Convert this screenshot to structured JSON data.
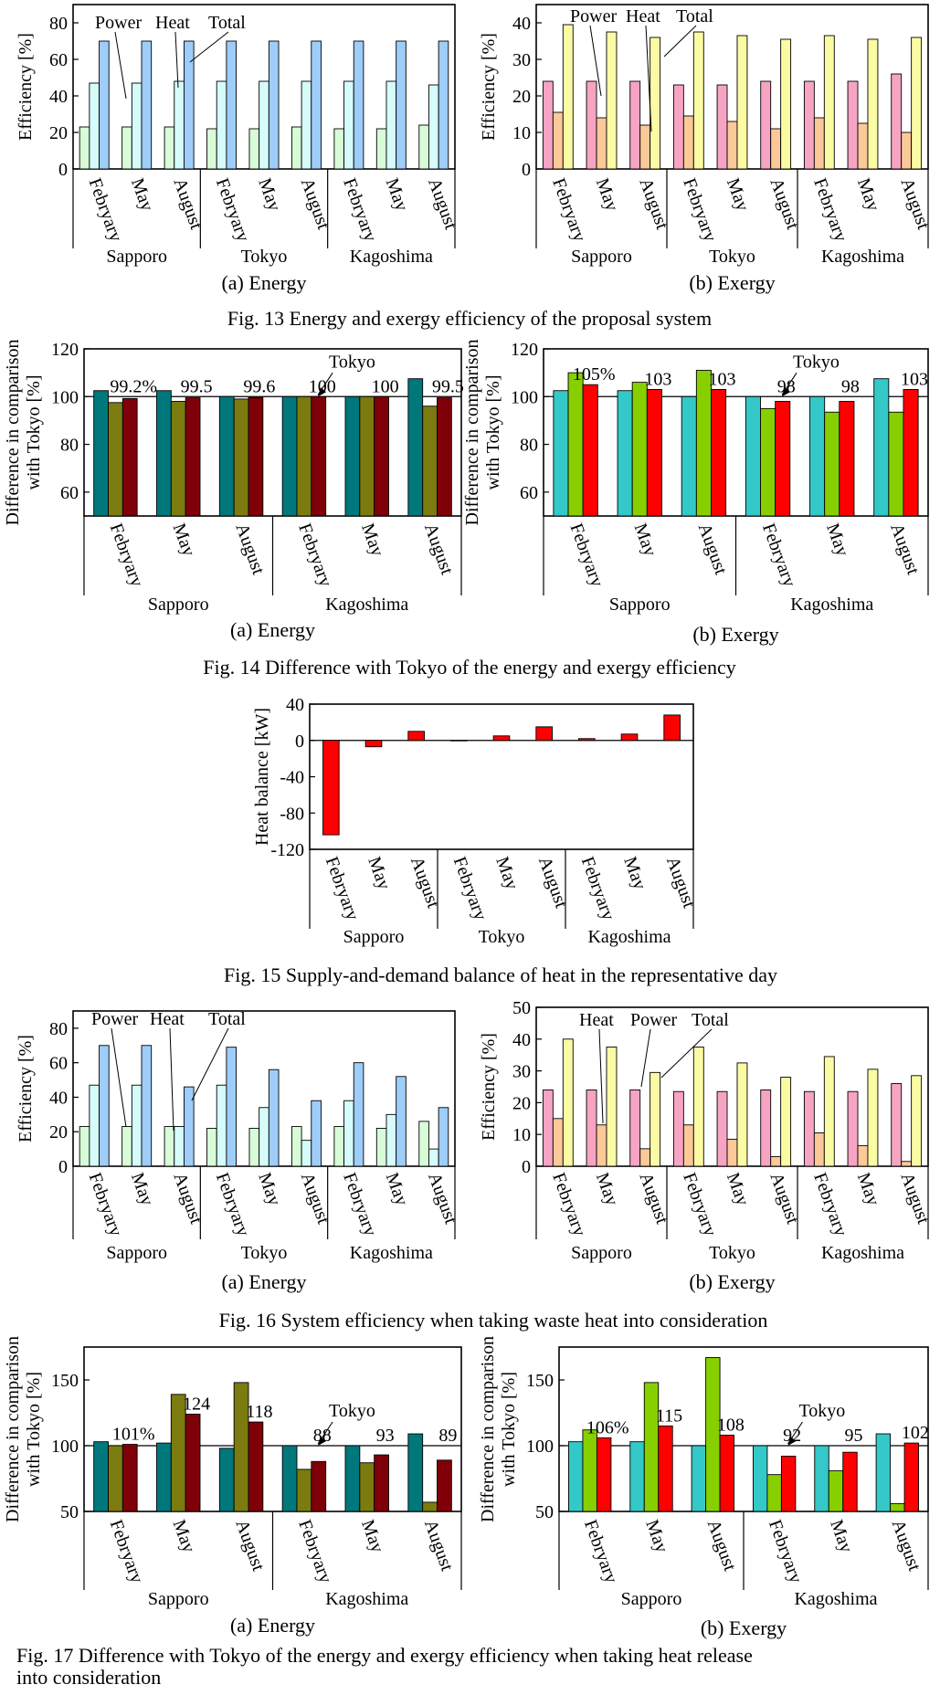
{
  "figures": [
    {
      "caption": "Fig. 13  Energy and exergy efficiency of the proposal system"
    },
    {
      "caption": "Fig. 14  Difference with Tokyo of the energy and exergy efficiency"
    },
    {
      "caption": "Fig. 15  Supply-and-demand balance of heat in the representative day"
    },
    {
      "caption": "Fig. 16  System efficiency when taking waste heat into consideration"
    },
    {
      "caption": "Fig. 17  Difference with Tokyo of the energy and exergy efficiency when taking heat release into consideration"
    }
  ],
  "colors": {
    "energy_power": "#d8fbd8",
    "energy_heat": "#d6fbfb",
    "energy_total": "#9ecdf9",
    "exergy_power": "#f7a4c4",
    "exergy_heat": "#fbc898",
    "exergy_total": "#fbfba4",
    "diff_energy_1": "#00777b",
    "diff_energy_2": "#7b7b10",
    "diff_energy_3": "#7f0008",
    "diff_exergy_1": "#34c8c8",
    "diff_exergy_2": "#88cf00",
    "diff_exergy_3": "#ff0000",
    "heat_balance": "#ff0000"
  },
  "chart_data": [
    {
      "id": "c13a",
      "type": "bar",
      "subtitle": "(a) Energy",
      "ylabel": "Efficiency [%]",
      "ylim": [
        0,
        90
      ],
      "yticks": [
        0,
        20,
        40,
        60,
        80
      ],
      "categories": [
        "Febryary",
        "May",
        "August",
        "Febryary",
        "May",
        "August",
        "Febryary",
        "May",
        "August"
      ],
      "groups": [
        "Sapporo",
        "Tokyo",
        "Kagoshima"
      ],
      "series": [
        {
          "name": "Power",
          "color_key": "energy_power",
          "values": [
            23,
            23,
            23,
            22,
            22,
            23,
            22,
            22,
            24
          ]
        },
        {
          "name": "Heat",
          "color_key": "energy_heat",
          "values": [
            47,
            47,
            48,
            48,
            48,
            48,
            48,
            48,
            46
          ]
        },
        {
          "name": "Total",
          "color_key": "energy_total",
          "values": [
            70,
            70,
            70,
            70,
            70,
            70,
            70,
            70,
            70
          ]
        }
      ]
    },
    {
      "id": "c13b",
      "type": "bar",
      "subtitle": "(b) Exergy",
      "ylabel": "Efficiency [%]",
      "ylim": [
        0,
        45
      ],
      "yticks": [
        0,
        10,
        20,
        30,
        40
      ],
      "categories": [
        "Febryary",
        "May",
        "August",
        "Febryary",
        "May",
        "August",
        "Febryary",
        "May",
        "August"
      ],
      "groups": [
        "Sapporo",
        "Tokyo",
        "Kagoshima"
      ],
      "series": [
        {
          "name": "Power",
          "color_key": "exergy_power",
          "values": [
            24,
            24,
            24,
            23,
            23,
            24,
            24,
            24,
            26
          ]
        },
        {
          "name": "Heat",
          "color_key": "exergy_heat",
          "values": [
            15.5,
            14,
            12,
            14.5,
            13,
            11,
            14,
            12.5,
            10
          ]
        },
        {
          "name": "Total",
          "color_key": "exergy_total",
          "values": [
            39.5,
            37.5,
            36,
            37.5,
            36.5,
            35.5,
            36.5,
            35.5,
            36
          ]
        }
      ]
    },
    {
      "id": "c14a",
      "type": "bar",
      "subtitle": "(a) Energy",
      "ylabel_lines": [
        "Difference in comparison",
        "with Tokyo [%]"
      ],
      "ylim": [
        50,
        120
      ],
      "yticks": [
        60,
        80,
        100,
        120
      ],
      "refline": 100,
      "refline_label": "Tokyo",
      "categories": [
        "Febryary",
        "May",
        "August",
        "Febryary",
        "May",
        "August"
      ],
      "groups": [
        "Sapporo",
        "Kagoshima"
      ],
      "series": [
        {
          "color_key": "diff_energy_1",
          "values": [
            102.5,
            102.5,
            100,
            100,
            100,
            107.5
          ]
        },
        {
          "color_key": "diff_energy_2",
          "values": [
            97.5,
            98,
            99,
            100,
            100,
            96
          ]
        },
        {
          "color_key": "diff_energy_3",
          "values": [
            99.2,
            99.5,
            99.6,
            100,
            100,
            99.5
          ]
        }
      ],
      "data_labels": [
        "99.2%",
        "99.5",
        "99.6",
        "100",
        "100",
        "99.5"
      ]
    },
    {
      "id": "c14b",
      "type": "bar",
      "subtitle": "(b) Exergy",
      "ylabel_lines": [
        "Difference in comparison",
        "with Tokyo [%]"
      ],
      "ylim": [
        50,
        120
      ],
      "yticks": [
        60,
        80,
        100,
        120
      ],
      "refline": 100,
      "refline_label": "Tokyo",
      "categories": [
        "Febryary",
        "May",
        "August",
        "Febryary",
        "May",
        "August"
      ],
      "groups": [
        "Sapporo",
        "Kagoshima"
      ],
      "series": [
        {
          "color_key": "diff_exergy_1",
          "values": [
            102.5,
            102.5,
            100,
            100,
            100,
            107.5
          ]
        },
        {
          "color_key": "diff_exergy_2",
          "values": [
            110,
            106,
            111,
            95,
            93.5,
            93.5
          ]
        },
        {
          "color_key": "diff_exergy_3",
          "values": [
            105,
            103,
            103,
            98,
            98,
            103
          ]
        }
      ],
      "data_labels": [
        "105%",
        "103",
        "103",
        "98",
        "98",
        "103"
      ]
    },
    {
      "id": "c15",
      "type": "bar",
      "ylabel": "Heat balance [kW]",
      "ylim": [
        -120,
        40
      ],
      "yticks": [
        -120,
        -80,
        -40,
        0,
        40
      ],
      "categories": [
        "Febryary",
        "May",
        "August",
        "Febryary",
        "May",
        "August",
        "Febryary",
        "May",
        "August"
      ],
      "groups": [
        "Sapporo",
        "Tokyo",
        "Kagoshima"
      ],
      "series": [
        {
          "color_key": "heat_balance",
          "values": [
            -104,
            -7,
            10,
            0,
            5,
            15,
            2,
            7,
            28
          ]
        }
      ]
    },
    {
      "id": "c16a",
      "type": "bar",
      "subtitle": "(a) Energy",
      "ylabel": "Efficiency [%]",
      "ylim": [
        0,
        90
      ],
      "yticks": [
        0,
        20,
        40,
        60,
        80
      ],
      "categories": [
        "Febryary",
        "May",
        "August",
        "Febryary",
        "May",
        "August",
        "Febryary",
        "May",
        "August"
      ],
      "groups": [
        "Sapporo",
        "Tokyo",
        "Kagoshima"
      ],
      "series": [
        {
          "name": "Power",
          "color_key": "energy_power",
          "values": [
            23,
            23,
            23,
            22,
            22,
            23,
            23,
            22,
            26
          ]
        },
        {
          "name": "Heat",
          "color_key": "energy_heat",
          "values": [
            47,
            47,
            23,
            47,
            34,
            15,
            38,
            30,
            10
          ]
        },
        {
          "name": "Total",
          "color_key": "energy_total",
          "values": [
            70,
            70,
            46,
            69,
            56,
            38,
            60,
            52,
            34
          ]
        }
      ]
    },
    {
      "id": "c16b",
      "type": "bar",
      "subtitle": "(b) Exergy",
      "ylabel": "Efficiency [%]",
      "ylim": [
        0,
        50
      ],
      "yticks": [
        0,
        10,
        20,
        30,
        40,
        50
      ],
      "categories": [
        "Febryary",
        "May",
        "August",
        "Febryary",
        "May",
        "August",
        "Febryary",
        "May",
        "August"
      ],
      "groups": [
        "Sapporo",
        "Tokyo",
        "Kagoshima"
      ],
      "series": [
        {
          "name": "Power",
          "color_key": "exergy_power",
          "values": [
            24,
            24,
            24,
            23.5,
            23.5,
            24,
            23.5,
            23.5,
            26
          ]
        },
        {
          "name": "Heat",
          "color_key": "exergy_heat",
          "values": [
            15,
            13,
            5.5,
            13,
            8.5,
            3,
            10.5,
            6.5,
            1.5
          ]
        },
        {
          "name": "Total",
          "color_key": "exergy_total",
          "values": [
            40,
            37.5,
            29.5,
            37.5,
            32.5,
            28,
            34.5,
            30.5,
            28.5
          ]
        }
      ]
    },
    {
      "id": "c17a",
      "type": "bar",
      "subtitle": "(a) Energy",
      "ylabel_lines": [
        "Difference in comparison",
        "with Tokyo [%]"
      ],
      "ylim": [
        50,
        175
      ],
      "yticks": [
        50,
        100,
        150
      ],
      "refline": 100,
      "refline_label": "Tokyo",
      "categories": [
        "Febryary",
        "May",
        "August",
        "Febryary",
        "May",
        "August"
      ],
      "groups": [
        "Sapporo",
        "Kagoshima"
      ],
      "series": [
        {
          "color_key": "diff_energy_1",
          "values": [
            103,
            102,
            98,
            100,
            100,
            109
          ]
        },
        {
          "color_key": "diff_energy_2",
          "values": [
            100,
            139,
            148,
            82,
            87,
            57
          ]
        },
        {
          "color_key": "diff_energy_3",
          "values": [
            101,
            124,
            118,
            88,
            93,
            89
          ]
        }
      ],
      "data_labels": [
        "101%",
        "124",
        "118",
        "88",
        "93",
        "89"
      ]
    },
    {
      "id": "c17b",
      "type": "bar",
      "subtitle": "(b) Exergy",
      "ylabel_lines": [
        "Difference in comparison",
        "with Tokyo [%]"
      ],
      "ylim": [
        50,
        175
      ],
      "yticks": [
        50,
        100,
        150
      ],
      "refline": 100,
      "refline_label": "Tokyo",
      "categories": [
        "Febryary",
        "May",
        "August",
        "Febryary",
        "May",
        "August"
      ],
      "groups": [
        "Sapporo",
        "Kagoshima"
      ],
      "series": [
        {
          "color_key": "diff_exergy_1",
          "values": [
            103,
            103,
            100,
            100,
            100,
            109
          ]
        },
        {
          "color_key": "diff_exergy_2",
          "values": [
            112,
            148,
            167,
            78,
            81,
            56
          ]
        },
        {
          "color_key": "diff_exergy_3",
          "values": [
            106,
            115,
            108,
            92,
            95,
            102
          ]
        }
      ],
      "data_labels": [
        "106%",
        "115",
        "108",
        "92",
        "95",
        "102"
      ]
    }
  ]
}
